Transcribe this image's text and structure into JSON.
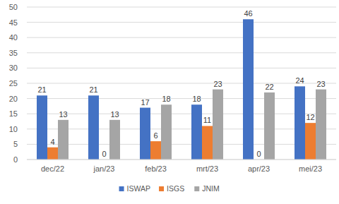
{
  "chart_data": {
    "type": "bar",
    "categories": [
      "dec/22",
      "jan/23",
      "feb/23",
      "mrt/23",
      "apr/23",
      "mei/23"
    ],
    "series": [
      {
        "name": "ISWAP",
        "color": "#4472c4",
        "values": [
          21,
          21,
          17,
          18,
          46,
          24
        ]
      },
      {
        "name": "ISGS",
        "color": "#ed7d31",
        "values": [
          4,
          0,
          6,
          11,
          0,
          12
        ]
      },
      {
        "name": "JNIM",
        "color": "#a5a5a5",
        "values": [
          13,
          13,
          18,
          23,
          22,
          23
        ]
      }
    ],
    "ylim": [
      0,
      50
    ],
    "yticks": [
      0,
      5,
      10,
      15,
      20,
      25,
      30,
      35,
      40,
      45,
      50
    ],
    "grid": true,
    "data_labels": true,
    "legend": "bottom"
  }
}
